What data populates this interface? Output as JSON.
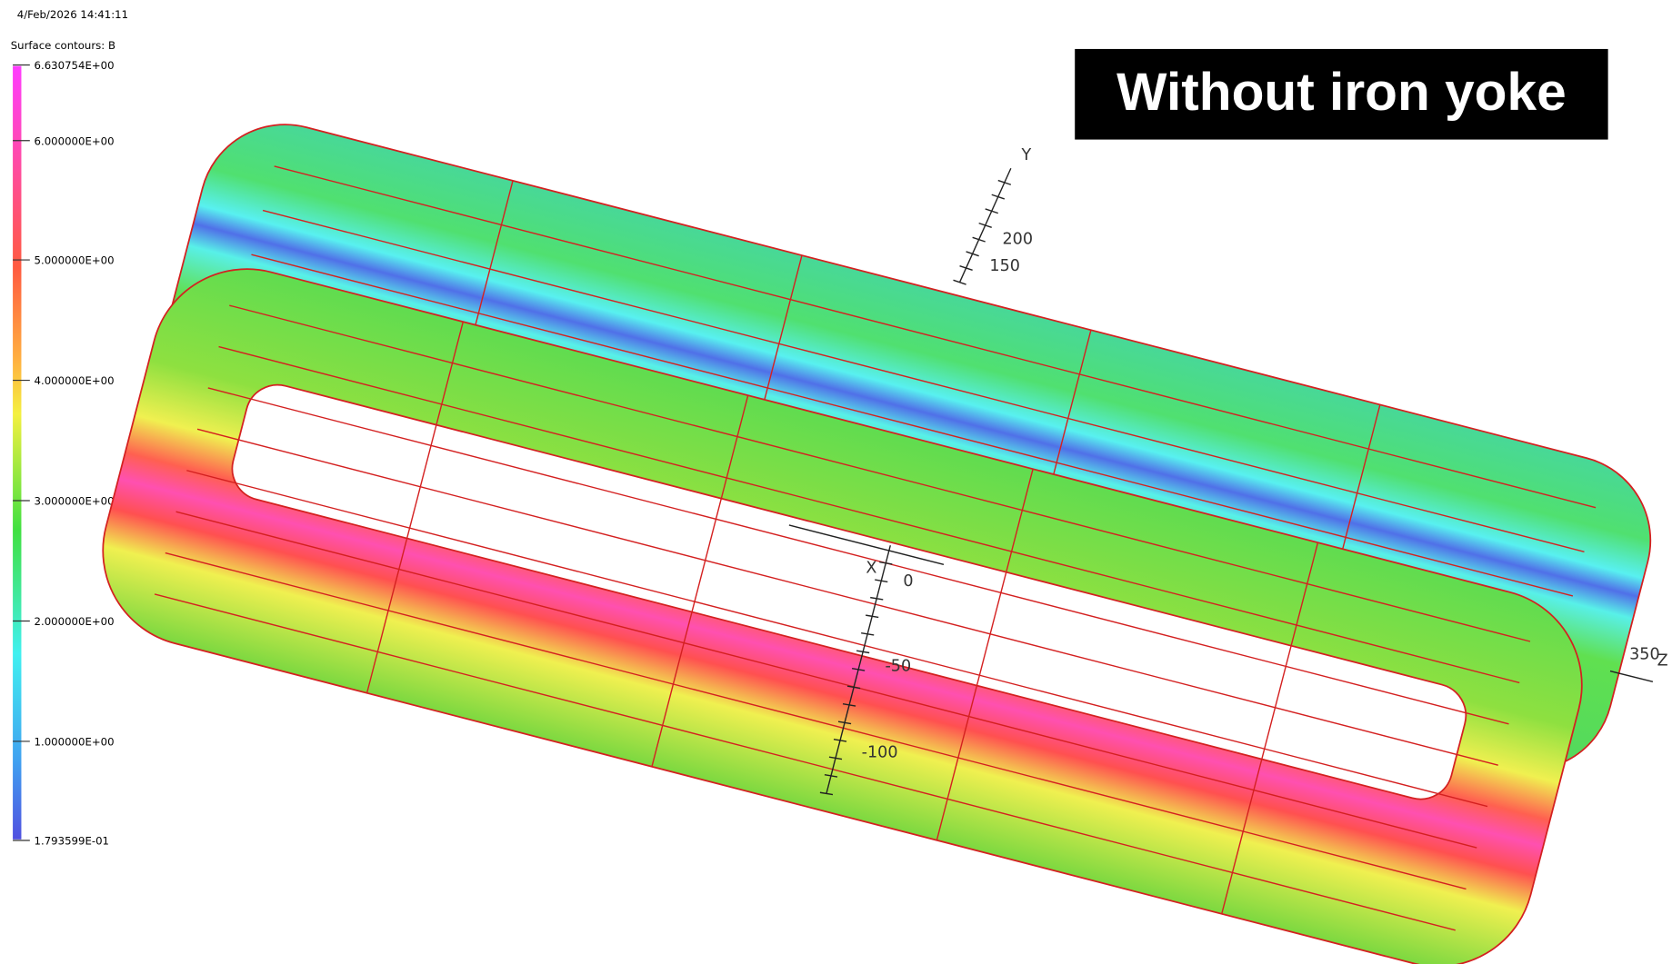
{
  "timestamp": "4/Feb/2026 14:41:11",
  "legend": {
    "title": "Surface contours: B",
    "labels": [
      "6.630754E+00",
      "6.000000E+00",
      "5.000000E+00",
      "4.000000E+00",
      "3.000000E+00",
      "2.000000E+00",
      "1.000000E+00",
      "1.793599E-01"
    ]
  },
  "overlay_title": "Without iron yoke",
  "axes": {
    "y": {
      "name": "Y",
      "labels": [
        "200",
        "150"
      ]
    },
    "x": {
      "name": "X",
      "labels": [
        "0",
        "-50",
        "-100"
      ]
    },
    "z": {
      "name": "Z",
      "labels": [
        "350"
      ]
    }
  }
}
